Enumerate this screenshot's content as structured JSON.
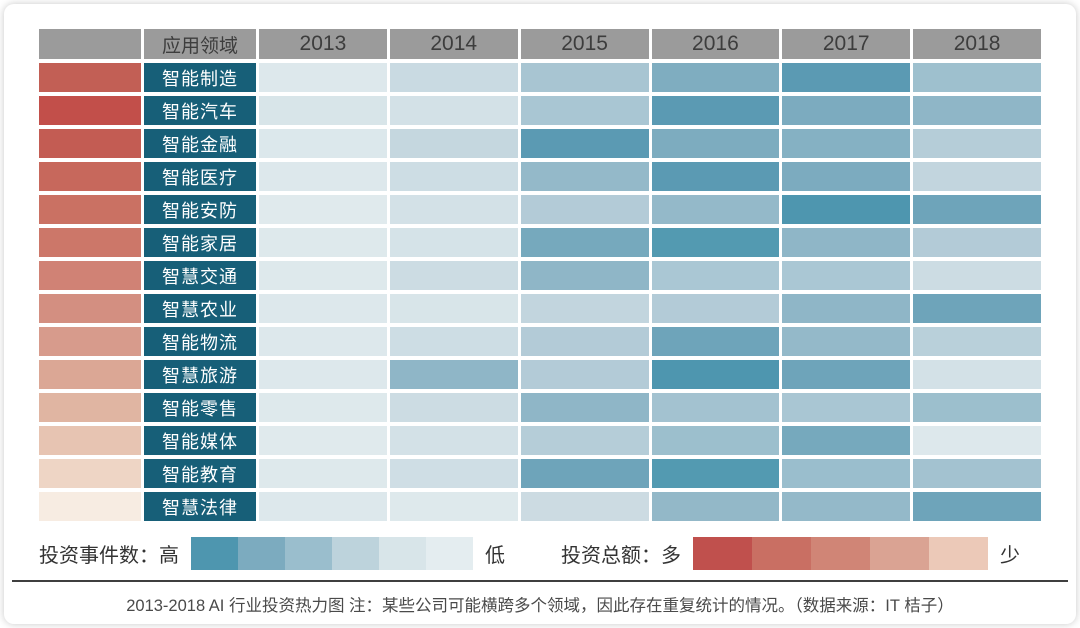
{
  "chart_data": {
    "type": "heatmap",
    "title": "2013-2018 AI 行业投资热力图",
    "header": {
      "domain_label": "应用领域",
      "years": [
        "2013",
        "2014",
        "2015",
        "2016",
        "2017",
        "2018"
      ]
    },
    "rows": [
      {
        "label": "智能制造",
        "amount_color": "#c25f55",
        "cells": [
          "#dde8ec",
          "#c9dae2",
          "#a8c5d2",
          "#7fadc0",
          "#5b9ab3",
          "#9ec0ce"
        ]
      },
      {
        "label": "智能汽车",
        "amount_color": "#c24f4a",
        "cells": [
          "#d8e5e9",
          "#d3e1e7",
          "#a9c6d3",
          "#5b9ab3",
          "#7cabbf",
          "#8fb6c7"
        ]
      },
      {
        "label": "智能金融",
        "amount_color": "#c35c53",
        "cells": [
          "#dce8ec",
          "#c5d7df",
          "#5b9ab3",
          "#7dacbf",
          "#85b1c3",
          "#b5cdd8"
        ]
      },
      {
        "label": "智能医疗",
        "amount_color": "#c7685c",
        "cells": [
          "#dde8ec",
          "#cddde4",
          "#94b9c9",
          "#5b9ab3",
          "#7cabbf",
          "#c2d5de"
        ]
      },
      {
        "label": "智能安防",
        "amount_color": "#ca7163",
        "cells": [
          "#e0eaed",
          "#d3e1e7",
          "#b3cbd7",
          "#94b9c9",
          "#4e96af",
          "#6ea4ba"
        ]
      },
      {
        "label": "智能家居",
        "amount_color": "#cc7769",
        "cells": [
          "#dee9ec",
          "#d5e3e8",
          "#76a9bd",
          "#539ab1",
          "#8fb6c7",
          "#b3cbd7"
        ]
      },
      {
        "label": "智慧交通",
        "amount_color": "#d08275",
        "cells": [
          "#dee9ec",
          "#ccdce3",
          "#8fb6c7",
          "#aac7d4",
          "#aac7d4",
          "#ccdce3"
        ]
      },
      {
        "label": "智慧农业",
        "amount_color": "#d38f81",
        "cells": [
          "#dde8ec",
          "#d8e5e9",
          "#c2d5de",
          "#b3cbd7",
          "#8fb6c7",
          "#6ea4ba"
        ]
      },
      {
        "label": "智能物流",
        "amount_color": "#d79b8c",
        "cells": [
          "#dde8ec",
          "#cddde4",
          "#b3cbd7",
          "#6ea4ba",
          "#94b9c9",
          "#b9d0da"
        ]
      },
      {
        "label": "智慧旅游",
        "amount_color": "#dba795",
        "cells": [
          "#dde8ec",
          "#8fb6c7",
          "#b3cbd7",
          "#4e96af",
          "#6ea4ba",
          "#d3e1e7"
        ]
      },
      {
        "label": "智能零售",
        "amount_color": "#e0b5a2",
        "cells": [
          "#dee9ec",
          "#ccdce3",
          "#8fb6c7",
          "#a3c2d0",
          "#a9c6d3",
          "#9cbfcd"
        ]
      },
      {
        "label": "智能媒体",
        "amount_color": "#e7c4b2",
        "cells": [
          "#e0eaed",
          "#d3e1e7",
          "#b5cdd8",
          "#9cbfcd",
          "#76a9bd",
          "#dde8ec"
        ]
      },
      {
        "label": "智能教育",
        "amount_color": "#eed5c5",
        "cells": [
          "#dee9ec",
          "#cfdee5",
          "#6ea4ba",
          "#539ab1",
          "#9abecd",
          "#a3c2d0"
        ]
      },
      {
        "label": "智慧法律",
        "amount_color": "#f7ece2",
        "cells": [
          "#dde8ec",
          "#dee9ec",
          "#ccdbe2",
          "#93b8c8",
          "#94b9c9",
          "#6ea4ba"
        ]
      }
    ],
    "legend_position": "bottom"
  },
  "legends": {
    "events": {
      "label": "投资事件数：高",
      "low": "低",
      "colors": [
        "#4e96af",
        "#7cabbf",
        "#9abecd",
        "#bdd3dc",
        "#d8e5e9",
        "#e4edf0"
      ]
    },
    "amount": {
      "label": "投资总额：多",
      "low": "少",
      "colors": [
        "#c0504d",
        "#c96f63",
        "#d08576",
        "#daa393",
        "#ecc9b8"
      ]
    }
  },
  "caption": "2013-2018 AI 行业投资热力图 注：某些公司可能横跨多个领域，因此存在重复统计的情况。（数据来源：IT 桔子）",
  "colors": {
    "header_bg": "#9b9b9b",
    "header_text": "#3d3d3d",
    "row_label_bg": "#175f78",
    "row_label_text": "#ffffff",
    "divider": "#3f3f3f"
  }
}
